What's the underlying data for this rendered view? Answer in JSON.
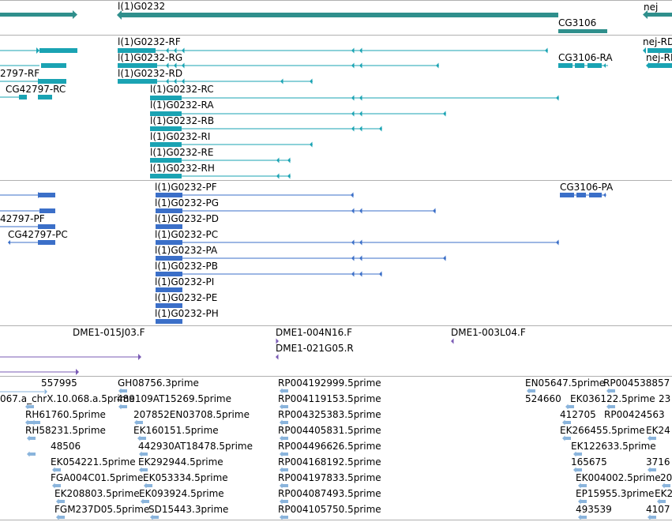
{
  "browser": {
    "colors": {
      "teal": "#2f8f8c",
      "teal_light": "#1aa3b3",
      "blue": "#3b6fc8",
      "purple": "#7a5bb5",
      "est": "#8ab4dc",
      "divider": "#b0b0b0"
    },
    "tracks": {
      "gene": {
        "labels": [
          "l(1)G0232",
          "nej",
          "CG3106"
        ]
      },
      "transcripts_a": {
        "labels": [
          "l(1)G0232-RF",
          "l(1)G0232-RG",
          "l(1)G0232-RD",
          "l(1)G0232-RC",
          "l(1)G0232-RA",
          "l(1)G0232-RB",
          "l(1)G0232-RI",
          "l(1)G0232-RE",
          "l(1)G0232-RH",
          "CG3106-RA",
          "nej-RD",
          "nej-RE",
          "2797-RF",
          "CG42797-RC"
        ]
      },
      "transcripts_b": {
        "labels": [
          "l(1)G0232-PF",
          "l(1)G0232-PG",
          "l(1)G0232-PD",
          "l(1)G0232-PC",
          "l(1)G0232-PA",
          "l(1)G0232-PB",
          "l(1)G0232-PI",
          "l(1)G0232-PE",
          "l(1)G0232-PH",
          "CG3106-PA",
          "42797-PF",
          "CG42797-PC"
        ]
      },
      "clones": {
        "labels": [
          "DME1-015J03.F",
          "DME1-004N16.F",
          "DME1-021G05.R",
          "DME1-003L04.F"
        ]
      },
      "ests": {
        "labels": [
          "557995",
          "067.a_chrX.10.068.a.5prime",
          "RH61760.5prime",
          "RH58231.5prime",
          "48506",
          "EK054221.5prime",
          "FGA004C01.5prime",
          "EK208803.5prime",
          "FGM237D05.5prime",
          "GH08756.3prime",
          "489109AT15269.5prime",
          "207852EN03708.5prime",
          "EK160151.5prime",
          "442930AT18478.5prime",
          "EK292944.5prime",
          "EK053334.5prime",
          "EK093924.5prime",
          "SD15443.3prime",
          "RP004192999.5prime",
          "RP004119153.5prime",
          "RP004325383.5prime",
          "RP004405831.5prime",
          "RP004496626.5prime",
          "RP004168192.5prime",
          "RP004197833.5prime",
          "RP004087493.5prime",
          "RP004105750.5prime",
          "EN05647.5prime",
          "RP004538857",
          "524660",
          "EK036122.5prime",
          "23",
          "412705",
          "RP00424563",
          "EK266455.5prime",
          "EK24",
          "EK122633.5prime",
          "165675",
          "3716",
          "EK004002.5prime",
          "20",
          "EP15955.3prime",
          "EK2",
          "493539",
          "4107"
        ]
      }
    }
  }
}
